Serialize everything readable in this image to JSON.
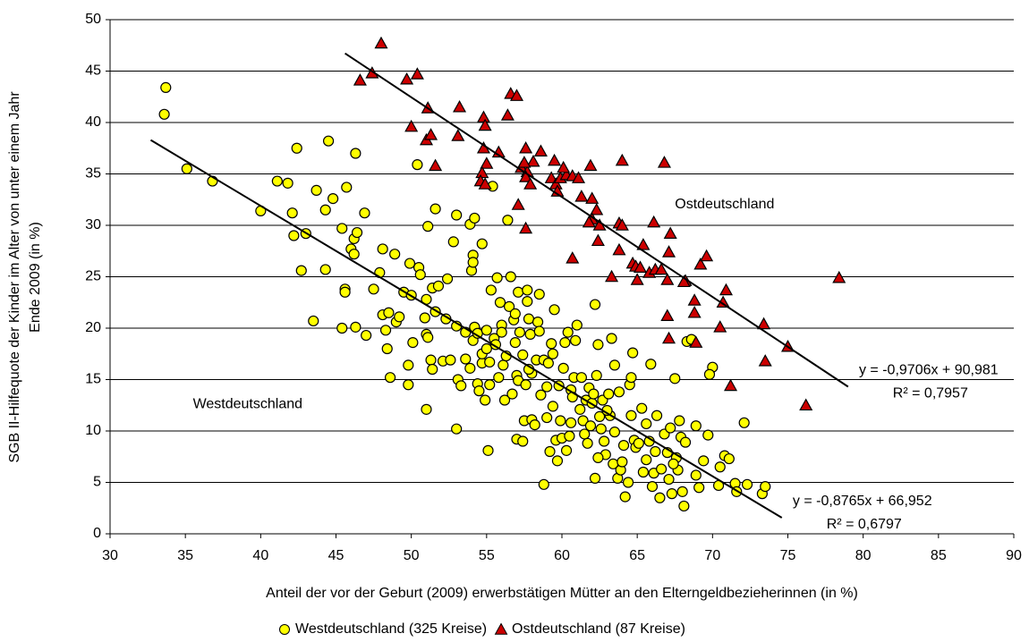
{
  "chart_data": {
    "type": "scatter",
    "ylabel": [
      "SGB II-Hilfequote der Kinder im Alter von unter einem Jahr",
      "Ende 2009 (in %)"
    ],
    "xlabel": "Anteil der vor der Geburt (2009) erwerbstätigen Mütter an den Elterngeldbezieherinnen (in %)",
    "xlim": [
      30,
      90
    ],
    "xticks": [
      30,
      35,
      40,
      45,
      50,
      55,
      60,
      65,
      70,
      75,
      80,
      85,
      90
    ],
    "ylim": [
      0,
      50
    ],
    "yticks": [
      0,
      5,
      10,
      15,
      20,
      25,
      30,
      35,
      40,
      45,
      50
    ],
    "grid": true,
    "legend": "bottom",
    "annotations": [
      {
        "text": "Ostdeutschland",
        "x": 67.5,
        "y": 32.0
      },
      {
        "text": "Westdeutschland",
        "x": 35.5,
        "y": 12.6
      }
    ],
    "trendlines": [
      {
        "series": 0,
        "slope": -0.8765,
        "intercept": 66.952,
        "x_range": [
          32.7,
          74.6
        ],
        "label": "y = -0,8765x + 66,952",
        "r2_label": "R² = 0,6797"
      },
      {
        "series": 1,
        "slope": -0.9706,
        "intercept": 90.981,
        "x_range": [
          45.6,
          79.0
        ],
        "label": "y = -0,9706x + 90,981",
        "r2_label": "R² = 0,7957"
      }
    ],
    "series": [
      {
        "name": "Westdeutschland (325 Kreise)",
        "color": "#ffff00",
        "marker": "circle",
        "x": [
          33.7,
          33.6,
          35.1,
          36.8,
          40.0,
          41.1,
          41.8,
          42.1,
          42.2,
          42.4,
          42.7,
          43.0,
          43.5,
          43.7,
          44.3,
          44.3,
          44.5,
          44.8,
          45.4,
          45.4,
          45.6,
          45.6,
          45.7,
          46.0,
          46.2,
          46.2,
          46.3,
          46.4,
          46.3,
          46.9,
          47.0,
          47.5,
          47.9,
          48.1,
          48.1,
          48.3,
          48.4,
          48.5,
          48.6,
          48.9,
          49.0,
          49.2,
          49.5,
          49.8,
          49.8,
          49.9,
          50.0,
          50.1,
          50.5,
          50.4,
          50.6,
          50.9,
          51.0,
          51.0,
          51.0,
          51.1,
          51.1,
          51.4,
          51.3,
          51.4,
          51.6,
          51.6,
          51.8,
          52.1,
          52.3,
          52.4,
          52.6,
          52.8,
          53.0,
          53.0,
          53.0,
          53.1,
          53.3,
          53.6,
          53.6,
          53.9,
          53.9,
          54.0,
          54.1,
          54.1,
          54.1,
          54.2,
          54.2,
          54.4,
          54.4,
          54.5,
          54.7,
          54.7,
          54.7,
          54.9,
          55.0,
          55.0,
          55.1,
          55.2,
          55.2,
          55.3,
          55.4,
          55.5,
          55.6,
          55.7,
          55.9,
          56.0,
          56.0,
          56.1,
          56.2,
          56.4,
          56.5,
          56.6,
          56.7,
          56.8,
          56.9,
          56.9,
          57.0,
          57.0,
          57.1,
          57.1,
          57.2,
          57.4,
          57.4,
          57.5,
          57.6,
          57.7,
          57.7,
          57.8,
          57.9,
          58.0,
          58.0,
          58.2,
          58.3,
          58.4,
          58.5,
          58.5,
          58.8,
          58.8,
          59.0,
          59.0,
          59.1,
          59.3,
          59.4,
          59.4,
          59.5,
          59.6,
          59.7,
          59.8,
          59.9,
          60.0,
          60.1,
          60.2,
          60.3,
          60.4,
          60.6,
          60.6,
          60.7,
          60.8,
          60.9,
          61.0,
          61.2,
          61.3,
          61.4,
          61.5,
          61.6,
          61.7,
          61.8,
          62.0,
          62.1,
          62.2,
          62.2,
          62.3,
          62.4,
          62.5,
          62.6,
          62.7,
          62.8,
          62.9,
          63.1,
          63.2,
          63.3,
          63.4,
          63.5,
          63.5,
          63.7,
          63.8,
          63.9,
          64.1,
          64.2,
          64.4,
          64.5,
          64.6,
          64.6,
          64.7,
          64.8,
          64.9,
          65.1,
          65.3,
          65.4,
          65.6,
          65.8,
          65.9,
          66.1,
          66.3,
          66.5,
          66.6,
          66.8,
          67.0,
          67.1,
          67.2,
          67.3,
          67.5,
          67.6,
          67.7,
          67.8,
          67.9,
          68.0,
          68.1,
          68.2,
          68.3,
          68.6,
          68.9,
          68.9,
          69.1,
          69.4,
          69.7,
          70.0,
          69.8,
          70.4,
          70.8,
          71.1,
          71.5,
          71.6,
          72.1,
          72.3,
          73.3,
          73.5,
          66.2,
          65.6,
          63.0,
          61.9,
          60.5,
          58.6,
          57.8,
          56.3,
          55.8,
          59.2,
          64.0,
          62.4,
          67.4,
          66.0,
          70.5
        ],
        "values": [
          43.4,
          40.8,
          35.5,
          34.3,
          31.4,
          34.3,
          34.1,
          31.2,
          29.0,
          37.5,
          25.6,
          29.2,
          20.7,
          33.4,
          25.7,
          31.5,
          38.2,
          32.6,
          20.0,
          29.7,
          23.8,
          23.5,
          33.7,
          27.7,
          27.2,
          28.7,
          37.0,
          29.3,
          20.1,
          31.2,
          19.3,
          23.8,
          25.4,
          27.7,
          21.3,
          19.8,
          18.0,
          21.5,
          15.2,
          27.2,
          20.6,
          21.1,
          23.5,
          16.4,
          14.5,
          26.3,
          23.2,
          18.6,
          25.9,
          35.9,
          25.2,
          21.0,
          22.8,
          19.4,
          12.1,
          19.1,
          29.9,
          23.9,
          16.9,
          16.0,
          31.6,
          21.6,
          24.1,
          16.8,
          20.9,
          24.8,
          16.9,
          28.4,
          31.0,
          10.2,
          20.2,
          15.0,
          14.4,
          19.6,
          17.0,
          30.1,
          16.1,
          25.6,
          27.1,
          26.4,
          18.8,
          30.7,
          20.1,
          19.5,
          14.6,
          13.9,
          16.6,
          17.5,
          28.2,
          13.0,
          19.8,
          18.0,
          8.1,
          14.5,
          16.7,
          23.7,
          33.8,
          19.0,
          18.4,
          24.9,
          22.5,
          20.3,
          19.6,
          16.4,
          13.0,
          30.5,
          22.1,
          25.0,
          13.6,
          20.8,
          21.4,
          18.6,
          15.4,
          9.2,
          23.5,
          14.9,
          19.6,
          9.0,
          17.4,
          11.0,
          14.5,
          23.7,
          22.6,
          20.9,
          19.4,
          11.1,
          15.6,
          10.6,
          16.9,
          20.6,
          23.3,
          19.7,
          16.9,
          4.8,
          11.3,
          14.3,
          16.6,
          18.5,
          12.4,
          17.5,
          21.8,
          9.1,
          7.1,
          14.4,
          11.0,
          9.3,
          16.1,
          18.6,
          8.1,
          19.6,
          10.8,
          14.0,
          13.3,
          15.2,
          18.8,
          20.3,
          12.1,
          15.2,
          11.0,
          9.7,
          13.0,
          8.8,
          14.2,
          12.7,
          13.6,
          5.4,
          22.3,
          15.4,
          18.4,
          11.4,
          10.2,
          13.0,
          9.0,
          7.7,
          13.6,
          11.5,
          19.0,
          6.8,
          16.4,
          9.9,
          5.4,
          13.8,
          6.2,
          8.6,
          3.6,
          5.0,
          14.5,
          15.2,
          11.5,
          17.6,
          9.1,
          8.4,
          8.8,
          12.2,
          6.0,
          10.7,
          9.0,
          16.5,
          5.9,
          11.5,
          3.5,
          6.3,
          9.7,
          7.9,
          5.3,
          10.3,
          3.9,
          15.1,
          7.4,
          6.2,
          11.0,
          9.4,
          4.1,
          2.7,
          8.9,
          18.7,
          18.9,
          10.5,
          5.7,
          4.5,
          7.1,
          9.6,
          16.2,
          15.5,
          4.7,
          7.6,
          7.3,
          4.9,
          4.1,
          10.8,
          4.8,
          3.9,
          4.6,
          8.0,
          7.2,
          12.0,
          10.5,
          9.5,
          13.5,
          16.0,
          17.3,
          15.2,
          8.0,
          7.0,
          7.4,
          6.8,
          4.6,
          6.5
        ]
      },
      {
        "name": "Ostdeutschland (87 Kreise)",
        "color": "#cc0000",
        "marker": "triangle",
        "x": [
          48,
          47.4,
          46.6,
          49.7,
          50.4,
          51.1,
          51.0,
          51.3,
          51.6,
          50.0,
          53.2,
          53.1,
          54.8,
          54.9,
          54.8,
          55.0,
          54.7,
          54.6,
          54.9,
          56.6,
          57.0,
          56.4,
          55.8,
          57.6,
          57.3,
          57.7,
          58.1,
          58.6,
          57.5,
          57.6,
          57.9,
          57.1,
          57.6,
          59.3,
          59.6,
          59.7,
          59.9,
          60.3,
          60.7,
          61.1,
          59.5,
          60.1,
          61.9,
          61.3,
          62.0,
          62.3,
          62.0,
          61.8,
          62.5,
          62.4,
          60.7,
          63.3,
          64.0,
          63.8,
          64.0,
          63.8,
          64.7,
          64.9,
          65.0,
          65.2,
          65.4,
          65.8,
          66.1,
          66.2,
          66.6,
          67.0,
          66.8,
          67.2,
          67.1,
          68.2,
          68.8,
          68.8,
          68.9,
          69.2,
          69.6,
          67.0,
          67.1,
          70.5,
          70.9,
          70.7,
          71.2,
          73.4,
          73.5,
          75.0,
          76.2,
          78.4,
          68.1
        ],
        "values": [
          47.7,
          44.8,
          44.1,
          44.2,
          44.7,
          41.4,
          38.3,
          38.8,
          35.8,
          39.6,
          41.5,
          38.7,
          40.5,
          39.7,
          37.5,
          36.0,
          35.1,
          34.3,
          34.0,
          42.8,
          42.6,
          40.7,
          37.1,
          37.5,
          35.6,
          35.2,
          36.2,
          37.2,
          36.1,
          34.7,
          34.0,
          32.0,
          29.7,
          34.6,
          34.0,
          33.3,
          34.6,
          34.9,
          34.8,
          34.6,
          36.3,
          35.6,
          35.8,
          32.8,
          32.6,
          31.5,
          30.6,
          30.3,
          30.0,
          28.5,
          26.8,
          25.0,
          36.3,
          30.2,
          30.0,
          27.6,
          26.3,
          26.0,
          24.7,
          25.9,
          28.1,
          25.4,
          30.3,
          25.7,
          25.7,
          24.7,
          36.1,
          29.2,
          27.4,
          24.6,
          22.7,
          21.5,
          18.6,
          26.2,
          27.0,
          21.2,
          19.0,
          20.1,
          23.7,
          22.5,
          14.4,
          20.4,
          16.8,
          18.2,
          12.5,
          24.9,
          24.5
        ]
      }
    ]
  }
}
